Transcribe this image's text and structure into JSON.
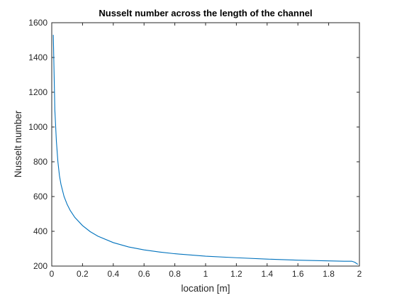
{
  "colors": {
    "background": "#ffffff",
    "axes": "#262626",
    "line": "#0072bd"
  },
  "chart_data": {
    "type": "line",
    "title": "Nusselt number across the length of the channel",
    "xlabel": "location [m]",
    "ylabel": "Nusselt number",
    "xlim": [
      0,
      2
    ],
    "ylim": [
      200,
      1600
    ],
    "xticks": [
      0,
      0.2,
      0.4,
      0.6,
      0.8,
      1,
      1.2,
      1.4,
      1.6,
      1.8,
      2
    ],
    "xtick_labels": [
      "0",
      "0.2",
      "0.4",
      "0.6",
      "0.8",
      "1",
      "1.2",
      "1.4",
      "1.6",
      "1.8",
      "2"
    ],
    "yticks": [
      200,
      400,
      600,
      800,
      1000,
      1200,
      1400,
      1600
    ],
    "ytick_labels": [
      "200",
      "400",
      "600",
      "800",
      "1000",
      "1200",
      "1400",
      "1600"
    ],
    "grid": false,
    "box": true,
    "series": [
      {
        "name": "Nusselt number",
        "x": [
          0.01,
          0.02,
          0.03,
          0.04,
          0.05,
          0.06,
          0.08,
          0.1,
          0.12,
          0.15,
          0.2,
          0.25,
          0.3,
          0.4,
          0.5,
          0.6,
          0.7,
          0.8,
          1.0,
          1.2,
          1.4,
          1.6,
          1.8,
          1.9,
          1.95,
          1.97,
          1.99
        ],
        "y": [
          1530,
          1100,
          920,
          800,
          720,
          670,
          600,
          555,
          520,
          480,
          433,
          398,
          372,
          335,
          310,
          293,
          281,
          271,
          257,
          248,
          240,
          234,
          230,
          228,
          228,
          222,
          210
        ]
      }
    ]
  }
}
